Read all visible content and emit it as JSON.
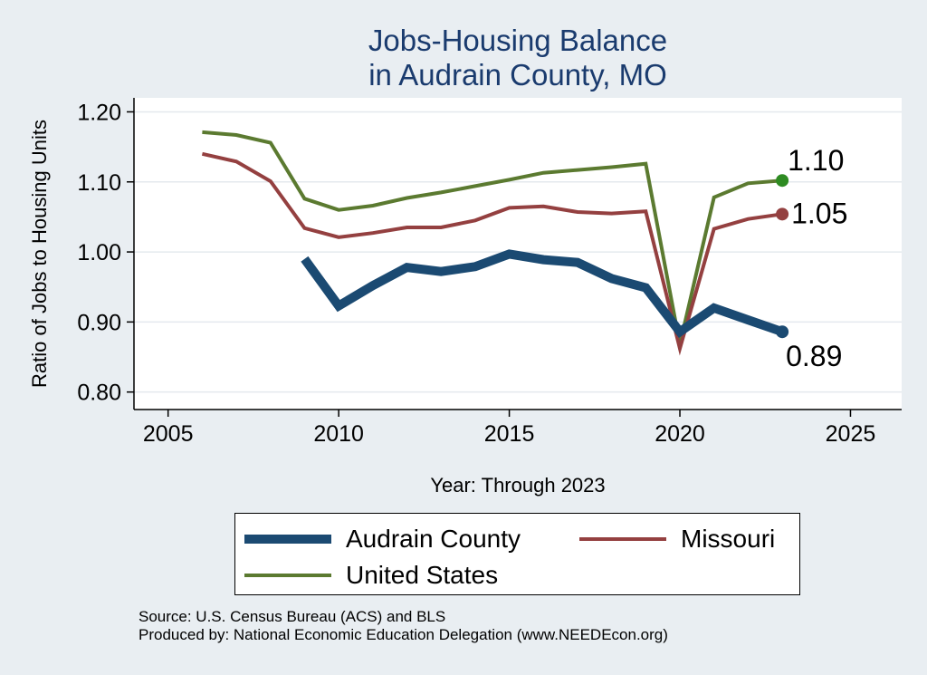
{
  "chart_data": {
    "type": "line",
    "title": [
      "Jobs-Housing Balance",
      "in Audrain County, MO"
    ],
    "xlabel": "Year: Through 2023",
    "ylabel": "Ratio of Jobs to Housing Units",
    "xlim": [
      2004,
      2026.5
    ],
    "ylim": [
      0.775,
      1.22
    ],
    "xticks": [
      2005,
      2010,
      2015,
      2020,
      2025
    ],
    "yticks": [
      0.8,
      0.9,
      1.0,
      1.1,
      1.2
    ],
    "ytick_labels": [
      "0.80",
      "0.90",
      "1.00",
      "1.10",
      "1.20"
    ],
    "grid": "horizontal",
    "legend_position": "bottom",
    "series": [
      {
        "name": "Audrain County",
        "color": "#1b4a72",
        "width": 10,
        "x": [
          2009,
          2010,
          2011,
          2012,
          2013,
          2014,
          2015,
          2016,
          2017,
          2018,
          2019,
          2020,
          2021,
          2022,
          2023
        ],
        "y": [
          0.99,
          0.923,
          0.952,
          0.978,
          0.972,
          0.979,
          0.997,
          0.989,
          0.985,
          0.962,
          0.949,
          0.886,
          0.92,
          0.903,
          0.886
        ],
        "end_label": "0.89"
      },
      {
        "name": "Missouri",
        "color": "#944040",
        "width": 4,
        "x": [
          2006,
          2007,
          2008,
          2009,
          2010,
          2011,
          2012,
          2013,
          2014,
          2015,
          2016,
          2017,
          2018,
          2019,
          2020,
          2021,
          2022,
          2023
        ],
        "y": [
          1.14,
          1.129,
          1.101,
          1.034,
          1.021,
          1.027,
          1.035,
          1.035,
          1.045,
          1.063,
          1.065,
          1.057,
          1.055,
          1.058,
          0.862,
          1.033,
          1.047,
          1.054
        ],
        "end_label": "1.05"
      },
      {
        "name": "United States",
        "color": "#5b7a30",
        "end_marker_color": "#2e8b22",
        "width": 4,
        "x": [
          2006,
          2007,
          2008,
          2009,
          2010,
          2011,
          2012,
          2013,
          2014,
          2015,
          2016,
          2017,
          2018,
          2019,
          2020,
          2021,
          2022,
          2023
        ],
        "y": [
          1.171,
          1.167,
          1.156,
          1.076,
          1.06,
          1.066,
          1.077,
          1.085,
          1.094,
          1.103,
          1.113,
          1.117,
          1.121,
          1.126,
          0.868,
          1.078,
          1.098,
          1.102
        ],
        "end_label": "1.10"
      }
    ]
  },
  "legend": {
    "audrain": "Audrain County",
    "missouri": "Missouri",
    "us": "United States"
  },
  "source": {
    "line1": "Source: U.S. Census Bureau (ACS) and BLS",
    "line2": "Produced by: National Economic Education Delegation (www.NEEDEcon.org)"
  }
}
